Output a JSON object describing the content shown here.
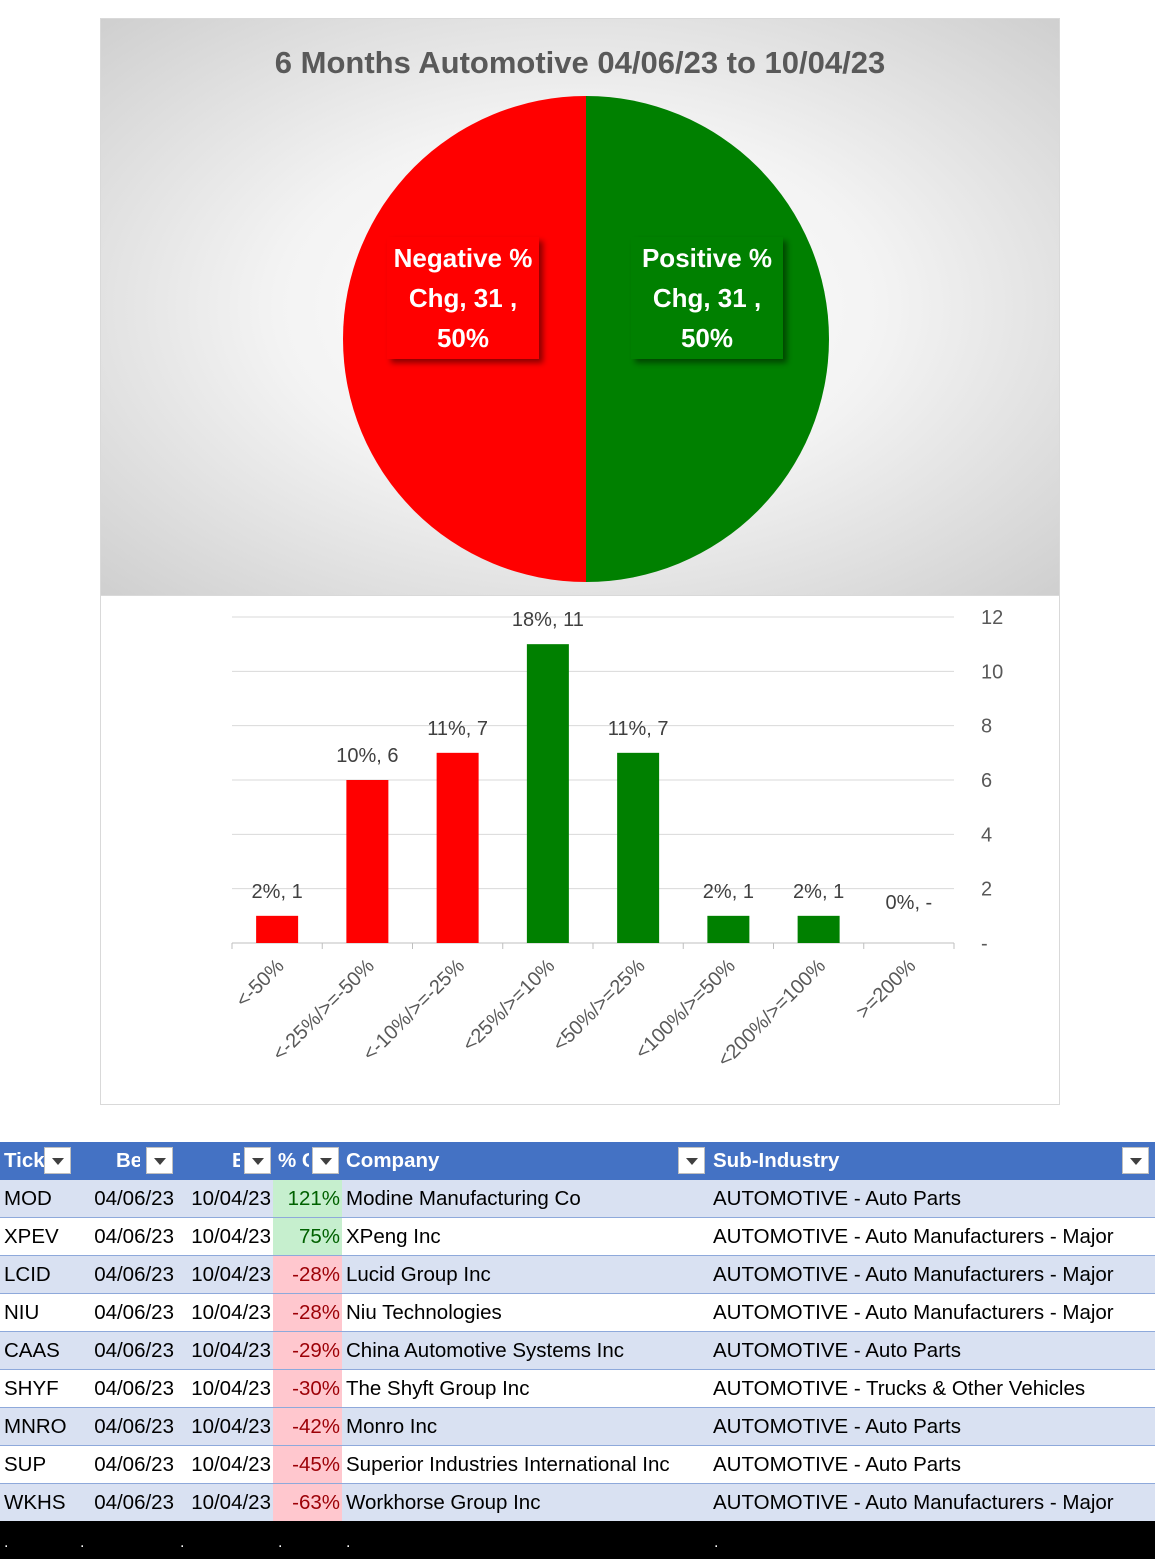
{
  "chart_data": [
    {
      "type": "pie",
      "title": "6 Months Automotive 04/06/23 to 10/04/23",
      "slices": [
        {
          "name": "Positive % Chg",
          "value": 31,
          "percent": "50%",
          "color": "#008000",
          "label_lines": [
            "Positive %",
            "Chg,  31 ,",
            "50%"
          ]
        },
        {
          "name": "Negative % Chg",
          "value": 31,
          "percent": "50%",
          "color": "#ff0000",
          "label_lines": [
            "Negative %",
            "Chg,  31 ,",
            "50%"
          ]
        }
      ]
    },
    {
      "type": "bar",
      "title": "",
      "categories": [
        "<-50%",
        "<-25%/>=-50%",
        "<-10%/>=-25%",
        "<25%/>=10%",
        "<50%/>=25%",
        "<100%/>=50%",
        "<200%/>=100%",
        ">=200%"
      ],
      "values": [
        1,
        6,
        7,
        11,
        7,
        1,
        1,
        0
      ],
      "data_labels": [
        "2%,  1",
        "10%,  6",
        "11%,  7",
        "18%,  11",
        "11%,  7",
        "2%,  1",
        "2%,  1",
        "0%,  -"
      ],
      "colors": [
        "#ff0000",
        "#ff0000",
        "#ff0000",
        "#008000",
        "#008000",
        "#008000",
        "#008000",
        "#008000"
      ],
      "y_ticks": [
        "-",
        "2",
        "4",
        "6",
        "8",
        "10",
        "12"
      ],
      "ylim": [
        0,
        12
      ],
      "y_axis_side": "right",
      "grid": true
    }
  ],
  "table": {
    "headers": [
      "Tick",
      "Be",
      "E",
      "% C",
      "Company",
      "Sub-Industry"
    ],
    "rows": [
      {
        "ticker": "MOD",
        "begin": "04/06/23",
        "end": "10/04/23",
        "chg": "121%",
        "company": "Modine Manufacturing Co",
        "sub": "AUTOMOTIVE - Auto Parts",
        "sign": "pos"
      },
      {
        "ticker": "XPEV",
        "begin": "04/06/23",
        "end": "10/04/23",
        "chg": "75%",
        "company": "XPeng Inc",
        "sub": "AUTOMOTIVE - Auto Manufacturers - Major",
        "sign": "pos"
      },
      {
        "ticker": "LCID",
        "begin": "04/06/23",
        "end": "10/04/23",
        "chg": "-28%",
        "company": "Lucid Group Inc",
        "sub": "AUTOMOTIVE - Auto Manufacturers - Major",
        "sign": "neg"
      },
      {
        "ticker": "NIU",
        "begin": "04/06/23",
        "end": "10/04/23",
        "chg": "-28%",
        "company": "Niu Technologies",
        "sub": "AUTOMOTIVE - Auto Manufacturers - Major",
        "sign": "neg"
      },
      {
        "ticker": "CAAS",
        "begin": "04/06/23",
        "end": "10/04/23",
        "chg": "-29%",
        "company": "China Automotive Systems Inc",
        "sub": "AUTOMOTIVE - Auto Parts",
        "sign": "neg"
      },
      {
        "ticker": "SHYF",
        "begin": "04/06/23",
        "end": "10/04/23",
        "chg": "-30%",
        "company": "The Shyft Group Inc",
        "sub": "AUTOMOTIVE - Trucks & Other Vehicles",
        "sign": "neg"
      },
      {
        "ticker": "MNRO",
        "begin": "04/06/23",
        "end": "10/04/23",
        "chg": "-42%",
        "company": "Monro Inc",
        "sub": "AUTOMOTIVE - Auto Parts",
        "sign": "neg"
      },
      {
        "ticker": "SUP",
        "begin": "04/06/23",
        "end": "10/04/23",
        "chg": "-45%",
        "company": "Superior Industries International Inc",
        "sub": "AUTOMOTIVE - Auto Parts",
        "sign": "neg"
      },
      {
        "ticker": "WKHS",
        "begin": "04/06/23",
        "end": "10/04/23",
        "chg": "-63%",
        "company": "Workhorse Group Inc",
        "sub": "AUTOMOTIVE - Auto Manufacturers - Major",
        "sign": "neg"
      }
    ],
    "footer_dots": [
      ".",
      ".",
      ".",
      ".",
      ".",
      "."
    ]
  },
  "icons": {
    "filter": "filter-dropdown-icon"
  }
}
